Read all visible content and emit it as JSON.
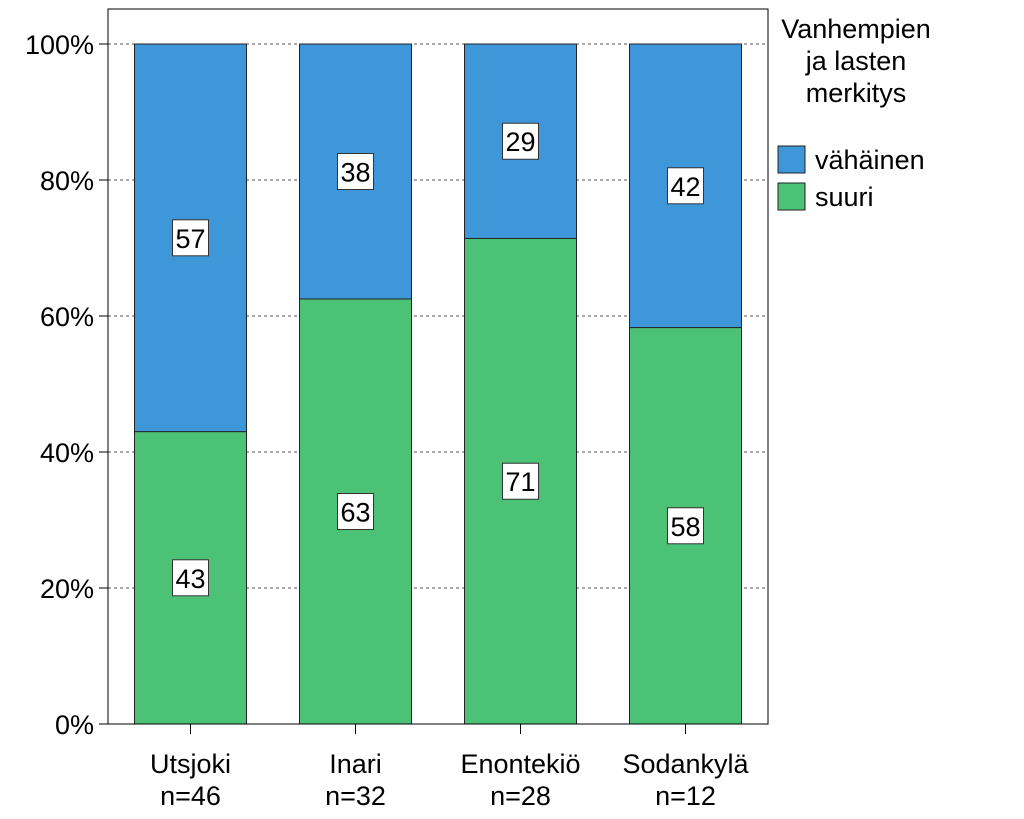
{
  "chart_data": {
    "type": "bar",
    "stacked": true,
    "percent_scale": true,
    "categories": [
      {
        "name": "Utsjoki",
        "n": "n=46"
      },
      {
        "name": "Inari",
        "n": "n=32"
      },
      {
        "name": "Enontekiö",
        "n": "n=28"
      },
      {
        "name": "Sodankylä",
        "n": "n=12"
      }
    ],
    "series": [
      {
        "name": "suuri",
        "color": "#4cc277",
        "values": [
          43,
          63,
          71,
          58
        ],
        "labels": [
          "43",
          "63",
          "71",
          "58"
        ]
      },
      {
        "name": "vähäinen",
        "color": "#3e97d9",
        "values": [
          57,
          38,
          29,
          42
        ],
        "labels": [
          "57",
          "38",
          "29",
          "42"
        ]
      }
    ],
    "bar_tops": [
      57,
      37.5,
      28.6,
      41.7
    ],
    "ylim": [
      0,
      100
    ],
    "yticks": [
      "0%",
      "20%",
      "40%",
      "60%",
      "80%",
      "100%"
    ],
    "ytick_values": [
      0,
      20,
      40,
      60,
      80,
      100
    ],
    "grid": "dashed horizontal",
    "legend": {
      "title_lines": [
        "Vanhempien",
        "ja lasten",
        "merkitys"
      ],
      "placement": "right",
      "items": [
        "vähäinen",
        "suuri"
      ]
    },
    "title": "",
    "xlabel": "",
    "ylabel": ""
  }
}
